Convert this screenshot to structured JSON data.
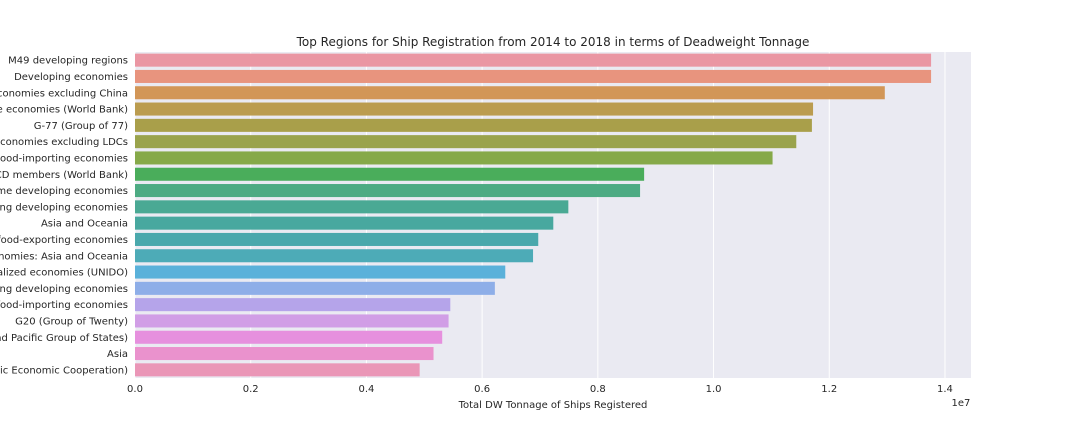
{
  "chart_data": {
    "type": "bar",
    "orientation": "horizontal",
    "title": "Top Regions for Ship Registration from 2014 to 2018 in terms of Deadweight Tonnage",
    "xlabel": "Total DW Tonnage of Ships Registered",
    "ylabel": "",
    "x_scale_label": "1e7",
    "xlim": [
      0,
      14450000
    ],
    "xticks": [
      0,
      2000000,
      4000000,
      6000000,
      8000000,
      10000000,
      12000000,
      14000000
    ],
    "xtick_labels": [
      "0.0",
      "0.2",
      "0.4",
      "0.6",
      "0.8",
      "1.0",
      "1.2",
      "1.4"
    ],
    "grid": true,
    "categories": [
      "M49 developing regions",
      "Developing economies",
      "economies excluding China",
      "e economies (World Bank)",
      "G-77 (Group of 77)",
      "conomies excluding LDCs",
      "ood-importing economies",
      "CD members (World Bank)",
      "me developing economies",
      "ing developing economies",
      "Asia and Oceania",
      "food-exporting economies",
      "nomies: Asia and Oceania",
      "alized economies (UNIDO)",
      "ing developing economies",
      "food-importing economies",
      "G20 (Group of Twenty)",
      "nd Pacific Group of States)",
      "Asia",
      "ic Economic Cooperation)"
    ],
    "values": [
      13760000,
      13760000,
      12960000,
      11720000,
      11700000,
      11430000,
      11020000,
      8800000,
      8730000,
      7490000,
      7230000,
      6970000,
      6880000,
      6400000,
      6220000,
      5450000,
      5420000,
      5310000,
      5160000,
      4920000
    ],
    "colors": [
      "#ea96a3",
      "#e8947e",
      "#d29657",
      "#bb9c4f",
      "#a99f4a",
      "#9aa34c",
      "#86a949",
      "#4aad5b",
      "#4dab83",
      "#4aa994",
      "#48a89f",
      "#4aa8ac",
      "#4dabb7",
      "#5ab1da",
      "#8eaee8",
      "#b5a4ea",
      "#d19ee6",
      "#e690de",
      "#ea92cd",
      "#ea96b7"
    ]
  }
}
